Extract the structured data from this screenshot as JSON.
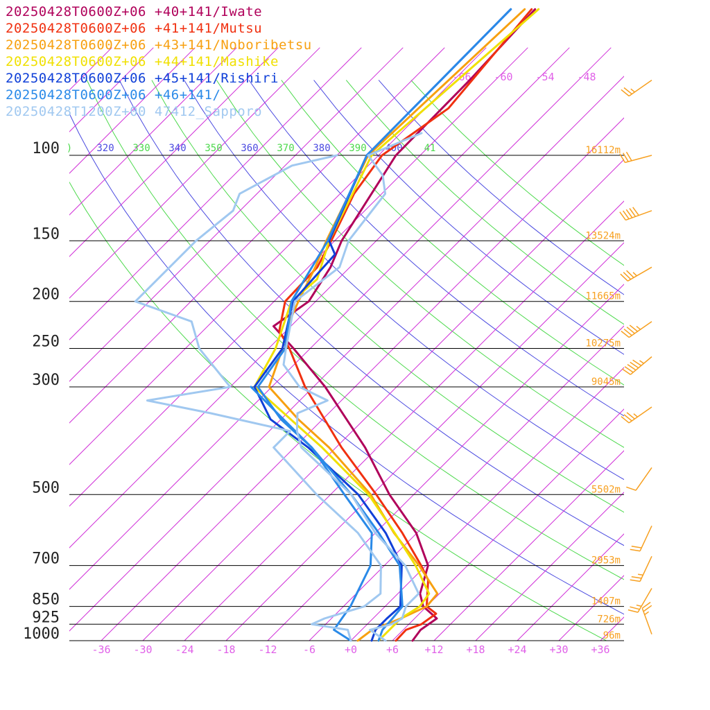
{
  "legend": [
    {
      "label": "20250428T0600Z+06 +40+141/Iwate",
      "color": "#b0005a"
    },
    {
      "label": "20250428T0600Z+06 +41+141/Mutsu",
      "color": "#f03010"
    },
    {
      "label": "20250428T0600Z+06 +43+141/Noboribetsu",
      "color": "#f7a010"
    },
    {
      "label": "20250428T0600Z+06 +44+141/Mashike",
      "color": "#f0e000"
    },
    {
      "label": "20250428T0600Z+06 +45+141/Rishiri",
      "color": "#1040d8"
    },
    {
      "label": "20250428T0600Z+06 +46+141/",
      "color": "#2a8ae8"
    },
    {
      "label": "20250428T1200Z+00 47412_Sapporo",
      "color": "#a0c8f0"
    }
  ],
  "chart_data": {
    "type": "line",
    "diagram": "skew-T log-p",
    "pressure_levels": [
      100,
      150,
      200,
      250,
      300,
      500,
      700,
      850,
      925,
      1000
    ],
    "pressure_labels": [
      "100",
      "150",
      "200",
      "250",
      "300",
      "500",
      "700",
      "850",
      "925",
      "1000"
    ],
    "height_labels": [
      {
        "p": 100,
        "label": "16112m"
      },
      {
        "p": 150,
        "label": "13524m"
      },
      {
        "p": 200,
        "label": "11665m"
      },
      {
        "p": 250,
        "label": "10275m"
      },
      {
        "p": 300,
        "label": "9045m"
      },
      {
        "p": 500,
        "label": "5502m"
      },
      {
        "p": 700,
        "label": "2953m"
      },
      {
        "p": 850,
        "label": "1407m"
      },
      {
        "p": 925,
        "label": "726m"
      },
      {
        "p": 1000,
        "label": "96m"
      }
    ],
    "x_ticks": [
      -36,
      -30,
      -24,
      -18,
      -12,
      -6,
      0,
      6,
      12,
      18,
      24,
      30,
      36
    ],
    "x_tick_labels": [
      "-36",
      "-30",
      "-24",
      "-18",
      "-12",
      "-6",
      "+0",
      "+6",
      "+12",
      "+18",
      "+24",
      "+30",
      "+36"
    ],
    "upper_isotherm_labels": [
      "-66",
      "-60",
      "-54",
      "-48"
    ],
    "theta_labels": [
      {
        "label": ")",
        "color": "#4cd94c"
      },
      {
        "label": "320",
        "color": "#4a4ae0"
      },
      {
        "label": "330",
        "color": "#4cd94c"
      },
      {
        "label": "340",
        "color": "#4a4ae0"
      },
      {
        "label": "350",
        "color": "#4cd94c"
      },
      {
        "label": "360",
        "color": "#4a4ae0"
      },
      {
        "label": "370",
        "color": "#4cd94c"
      },
      {
        "label": "380",
        "color": "#4a4ae0"
      },
      {
        "label": "390",
        "color": "#4cd94c"
      },
      {
        "label": "400",
        "color": "#4a4ae0"
      },
      {
        "label": "41",
        "color": "#4cd94c"
      }
    ],
    "xlim": [
      -40,
      40
    ],
    "ylim": [
      1000,
      100
    ],
    "series": [
      {
        "name": "20250428T0600Z+06 +40+141/Iwate",
        "color": "#b0005a",
        "temperature": [
          {
            "p": 1000,
            "t": 8.9
          },
          {
            "p": 950,
            "t": 8.5
          },
          {
            "p": 900,
            "t": 9.2
          },
          {
            "p": 850,
            "t": 5.5
          },
          {
            "p": 800,
            "t": 3.2
          },
          {
            "p": 700,
            "t": 0.3
          },
          {
            "p": 600,
            "t": -6.1
          },
          {
            "p": 500,
            "t": -15.5
          },
          {
            "p": 400,
            "t": -25.8
          },
          {
            "p": 300,
            "t": -40.3
          },
          {
            "p": 250,
            "t": -50.4
          },
          {
            "p": 225,
            "t": -56.5
          },
          {
            "p": 200,
            "t": -55.0
          },
          {
            "p": 170,
            "t": -56.8
          },
          {
            "p": 150,
            "t": -59.0
          },
          {
            "p": 100,
            "t": -63.5
          },
          {
            "p": 70,
            "t": -63.7
          },
          {
            "p": 50,
            "t": -64.5
          }
        ]
      },
      {
        "name": "20250428T0600Z+06 +41+141/Mutsu",
        "color": "#f03010",
        "temperature": [
          {
            "p": 1000,
            "t": 6.5
          },
          {
            "p": 950,
            "t": 6.4
          },
          {
            "p": 925,
            "t": 7.8
          },
          {
            "p": 880,
            "t": 8.4
          },
          {
            "p": 850,
            "t": 6.0
          },
          {
            "p": 750,
            "t": 2.4
          },
          {
            "p": 700,
            "t": -0.7
          },
          {
            "p": 600,
            "t": -8.1
          },
          {
            "p": 500,
            "t": -17.4
          },
          {
            "p": 400,
            "t": -29.2
          },
          {
            "p": 300,
            "t": -43.2
          },
          {
            "p": 250,
            "t": -51.0
          },
          {
            "p": 230,
            "t": -55.0
          },
          {
            "p": 200,
            "t": -58.4
          },
          {
            "p": 170,
            "t": -58.7
          },
          {
            "p": 150,
            "t": -60.5
          },
          {
            "p": 120,
            "t": -64.0
          },
          {
            "p": 100,
            "t": -65.5
          },
          {
            "p": 80,
            "t": -62.7
          },
          {
            "p": 50,
            "t": -65.0
          }
        ]
      },
      {
        "name": "20250428T0600Z+06 +43+141/Noboribetsu",
        "color": "#f7a010",
        "temperature": [
          {
            "p": 1000,
            "t": 1.0
          },
          {
            "p": 950,
            "t": 1.5
          },
          {
            "p": 900,
            "t": 4.0
          },
          {
            "p": 850,
            "t": 6.0
          },
          {
            "p": 800,
            "t": 5.7
          },
          {
            "p": 700,
            "t": -1.0
          },
          {
            "p": 600,
            "t": -9.3
          },
          {
            "p": 500,
            "t": -18.2
          },
          {
            "p": 400,
            "t": -31.0
          },
          {
            "p": 350,
            "t": -39.5
          },
          {
            "p": 300,
            "t": -48.4
          },
          {
            "p": 250,
            "t": -52.0
          },
          {
            "p": 225,
            "t": -54.5
          },
          {
            "p": 200,
            "t": -56.5
          },
          {
            "p": 170,
            "t": -59.0
          },
          {
            "p": 150,
            "t": -61.2
          },
          {
            "p": 100,
            "t": -67.5
          },
          {
            "p": 50,
            "t": -66.0
          }
        ]
      },
      {
        "name": "20250428T0600Z+06 +44+141/Mashike",
        "color": "#f0e000",
        "temperature": [
          {
            "p": 1000,
            "t": 4.0
          },
          {
            "p": 950,
            "t": 4.0
          },
          {
            "p": 900,
            "t": 4.0
          },
          {
            "p": 850,
            "t": 5.0
          },
          {
            "p": 800,
            "t": 4.5
          },
          {
            "p": 700,
            "t": -1.5
          },
          {
            "p": 600,
            "t": -9.2
          },
          {
            "p": 500,
            "t": -18.5
          },
          {
            "p": 400,
            "t": -32.0
          },
          {
            "p": 300,
            "t": -50.5
          },
          {
            "p": 250,
            "t": -53.0
          },
          {
            "p": 200,
            "t": -57.5
          },
          {
            "p": 180,
            "t": -57.0
          },
          {
            "p": 150,
            "t": -60.8
          },
          {
            "p": 120,
            "t": -64.2
          },
          {
            "p": 100,
            "t": -67.0
          },
          {
            "p": 50,
            "t": -64.0
          }
        ]
      },
      {
        "name": "20250428T0600Z+06 +45+141/Rishiri",
        "color": "#1040d8",
        "temperature": [
          {
            "p": 1000,
            "t": 3.0
          },
          {
            "p": 950,
            "t": 2.0
          },
          {
            "p": 900,
            "t": 2.0
          },
          {
            "p": 850,
            "t": 2.2
          },
          {
            "p": 700,
            "t": -3.5
          },
          {
            "p": 600,
            "t": -10.5
          },
          {
            "p": 500,
            "t": -20.0
          },
          {
            "p": 400,
            "t": -34.0
          },
          {
            "p": 350,
            "t": -43.5
          },
          {
            "p": 300,
            "t": -50.5
          },
          {
            "p": 250,
            "t": -52.0
          },
          {
            "p": 200,
            "t": -57.3
          },
          {
            "p": 160,
            "t": -58.0
          },
          {
            "p": 150,
            "t": -60.8
          },
          {
            "p": 100,
            "t": -67.7
          },
          {
            "p": 50,
            "t": -68.0
          }
        ]
      },
      {
        "name": "20250428T0600Z+06 +46+141/",
        "color": "#2a8ae8",
        "temperature": [
          {
            "p": 1000,
            "t": 4.0
          },
          {
            "p": 950,
            "t": 3.0
          },
          {
            "p": 900,
            "t": 2.8
          },
          {
            "p": 850,
            "t": 2.5
          },
          {
            "p": 700,
            "t": -3.8
          },
          {
            "p": 600,
            "t": -11.5
          },
          {
            "p": 500,
            "t": -21.0
          },
          {
            "p": 400,
            "t": -33.5
          },
          {
            "p": 350,
            "t": -42.0
          },
          {
            "p": 300,
            "t": -50.0
          },
          {
            "p": 250,
            "t": -51.6
          },
          {
            "p": 200,
            "t": -57.5
          },
          {
            "p": 150,
            "t": -61.0
          },
          {
            "p": 100,
            "t": -67.7
          },
          {
            "p": 50,
            "t": -68.0
          }
        ],
        "dewpoint": [
          {
            "p": 1000,
            "t": 0.0
          },
          {
            "p": 950,
            "t": -4.0
          },
          {
            "p": 900,
            "t": -4.5
          },
          {
            "p": 850,
            "t": -5.0
          },
          {
            "p": 700,
            "t": -8.0
          },
          {
            "p": 600,
            "t": -12.5
          },
          {
            "p": 500,
            "t": -22.0
          },
          {
            "p": 400,
            "t": -33.5
          },
          {
            "p": 300,
            "t": -51.0
          }
        ]
      },
      {
        "name": "20250428T1200Z+00 47412_Sapporo",
        "color": "#a0c8f0",
        "temperature": [
          {
            "p": 1000,
            "t": 5.0
          },
          {
            "p": 950,
            "t": 1.2
          },
          {
            "p": 925,
            "t": 3.5
          },
          {
            "p": 900,
            "t": 4.2
          },
          {
            "p": 850,
            "t": 3.0
          },
          {
            "p": 800,
            "t": 3.0
          },
          {
            "p": 700,
            "t": -3.0
          },
          {
            "p": 600,
            "t": -12.0
          },
          {
            "p": 500,
            "t": -21.0
          },
          {
            "p": 400,
            "t": -35.0
          },
          {
            "p": 370,
            "t": -38.0
          },
          {
            "p": 340,
            "t": -40.5
          },
          {
            "p": 320,
            "t": -38.0
          },
          {
            "p": 300,
            "t": -44.0
          },
          {
            "p": 270,
            "t": -49.5
          },
          {
            "p": 250,
            "t": -51.5
          },
          {
            "p": 200,
            "t": -57.0
          },
          {
            "p": 170,
            "t": -55.5
          },
          {
            "p": 150,
            "t": -58.0
          },
          {
            "p": 120,
            "t": -59.5
          },
          {
            "p": 110,
            "t": -62.5
          },
          {
            "p": 100,
            "t": -67.5
          },
          {
            "p": 90,
            "t": -63.0
          }
        ],
        "dewpoint": [
          {
            "p": 1000,
            "t": 0.0
          },
          {
            "p": 950,
            "t": -2.0
          },
          {
            "p": 925,
            "t": -8.0
          },
          {
            "p": 900,
            "t": -7.0
          },
          {
            "p": 850,
            "t": -3.0
          },
          {
            "p": 800,
            "t": -2.5
          },
          {
            "p": 700,
            "t": -6.5
          },
          {
            "p": 600,
            "t": -14.5
          },
          {
            "p": 500,
            "t": -26.0
          },
          {
            "p": 400,
            "t": -39.0
          },
          {
            "p": 370,
            "t": -39.0
          },
          {
            "p": 340,
            "t": -53.0
          },
          {
            "p": 320,
            "t": -64.0
          },
          {
            "p": 300,
            "t": -54.0
          },
          {
            "p": 250,
            "t": -64.0
          },
          {
            "p": 220,
            "t": -69.0
          },
          {
            "p": 200,
            "t": -80.0
          },
          {
            "p": 150,
            "t": -80.0
          },
          {
            "p": 130,
            "t": -79.0
          },
          {
            "p": 120,
            "t": -80.5
          },
          {
            "p": 105,
            "t": -77.0
          },
          {
            "p": 100,
            "t": -72.0
          }
        ]
      }
    ],
    "wind_barbs": [
      {
        "p": 70,
        "dir": 235,
        "speed_kt": 25
      },
      {
        "p": 100,
        "dir": 255,
        "speed_kt": 30
      },
      {
        "p": 130,
        "dir": 250,
        "speed_kt": 50
      },
      {
        "p": 170,
        "dir": 240,
        "speed_kt": 35
      },
      {
        "p": 220,
        "dir": 235,
        "speed_kt": 45
      },
      {
        "p": 260,
        "dir": 230,
        "speed_kt": 55
      },
      {
        "p": 330,
        "dir": 235,
        "speed_kt": 35
      },
      {
        "p": 440,
        "dir": 215,
        "speed_kt": 10
      },
      {
        "p": 580,
        "dir": 205,
        "speed_kt": 20
      },
      {
        "p": 670,
        "dir": 205,
        "speed_kt": 25
      },
      {
        "p": 780,
        "dir": 210,
        "speed_kt": 25
      },
      {
        "p": 970,
        "dir": 340,
        "speed_kt": 25
      }
    ]
  },
  "colors": {
    "isotherm": "#d030d8",
    "theta_green": "#4cd94c",
    "theta_blue": "#4a4ae0",
    "isobar": "#000000",
    "axis_label": "#e060e8",
    "height_label": "#f7a020",
    "barb": "#f7a020"
  }
}
